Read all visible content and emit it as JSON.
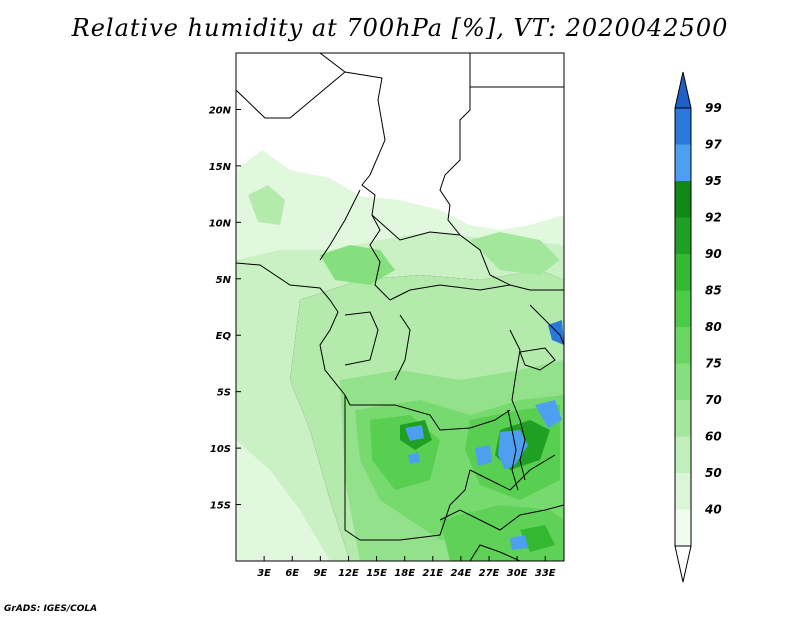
{
  "title": "Relative humidity at 700hPa [%], VT: 2020042500",
  "credit": "GrADS: IGES/COLA",
  "map": {
    "lon_range": [
      0,
      35
    ],
    "lat_range": [
      -20,
      25
    ],
    "y_ticks": [
      {
        "lat": 20,
        "label": "20N"
      },
      {
        "lat": 15,
        "label": "15N"
      },
      {
        "lat": 10,
        "label": "10N"
      },
      {
        "lat": 5,
        "label": "5N"
      },
      {
        "lat": 0,
        "label": "EQ"
      },
      {
        "lat": -5,
        "label": "5S"
      },
      {
        "lat": -10,
        "label": "10S"
      },
      {
        "lat": -15,
        "label": "15S"
      }
    ],
    "x_ticks": [
      {
        "lon": 3,
        "label": "3E"
      },
      {
        "lon": 6,
        "label": "6E"
      },
      {
        "lon": 9,
        "label": "9E"
      },
      {
        "lon": 12,
        "label": "12E"
      },
      {
        "lon": 15,
        "label": "15E"
      },
      {
        "lon": 18,
        "label": "18E"
      },
      {
        "lon": 21,
        "label": "21E"
      },
      {
        "lon": 24,
        "label": "24E"
      },
      {
        "lon": 27,
        "label": "27E"
      },
      {
        "lon": 30,
        "label": "30E"
      },
      {
        "lon": 33,
        "label": "33E"
      }
    ]
  },
  "colorbar": {
    "levels": [
      {
        "label": "40",
        "color": "#f0fcf0"
      },
      {
        "label": "50",
        "color": "#daf6d6"
      },
      {
        "label": "60",
        "color": "#c0efbb"
      },
      {
        "label": "70",
        "color": "#a2e79c"
      },
      {
        "label": "75",
        "color": "#86df7e"
      },
      {
        "label": "80",
        "color": "#68d661"
      },
      {
        "label": "85",
        "color": "#4ccc46"
      },
      {
        "label": "90",
        "color": "#33b831"
      },
      {
        "label": "92",
        "color": "#1fa024"
      },
      {
        "label": "95",
        "color": "#108816"
      },
      {
        "label": "97",
        "color": "#4f9ff0"
      },
      {
        "label": "99",
        "color": "#2978dc"
      }
    ],
    "top_color": "#1f5fc8",
    "bottom_color": "#ffffff"
  }
}
